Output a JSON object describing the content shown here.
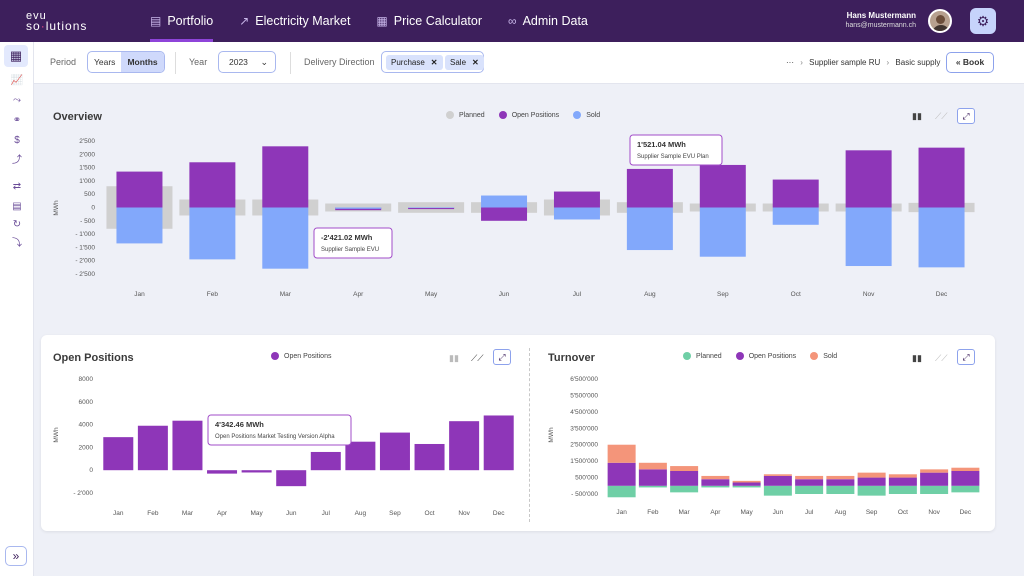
{
  "nav": {
    "logo_line1": "evu",
    "logo_line2a": "so",
    "logo_line2b": "lutions",
    "items": [
      {
        "label": "Portfolio",
        "icon": "portfolio-icon"
      },
      {
        "label": "Electricity Market",
        "icon": "trend-icon"
      },
      {
        "label": "Price Calculator",
        "icon": "calculator-icon"
      },
      {
        "label": "Admin Data",
        "icon": "glasses-icon"
      }
    ],
    "user_name": "Hans Mustermann",
    "user_email": "hans@mustermann.ch"
  },
  "filters": {
    "period_label": "Period",
    "period_options": [
      "Years",
      "Months"
    ],
    "period_selected": "Months",
    "year_label": "Year",
    "year_value": "2023",
    "direction_label": "Delivery Direction",
    "direction_chips": [
      "Purchase",
      "Sale"
    ],
    "breadcrumb": [
      "···",
      "Supplier sample RU",
      "Basic supply"
    ],
    "book_label": "Book"
  },
  "colors": {
    "planned": "#d0d0d0",
    "open": "#8e36b8",
    "sold": "#82a8fb",
    "turnover_planned": "#6fcfa6",
    "turnover_open": "#8e36b8",
    "turnover_sold": "#f4957a",
    "nav_bg": "#3d1f5c"
  },
  "overview": {
    "title": "Overview",
    "legend": [
      "Planned",
      "Open Positions",
      "Sold"
    ],
    "tooltip1_value": "1'521.04 MWh",
    "tooltip1_label": "Supplier Sample EVU Plan",
    "tooltip2_value": "-2'421.02 MWh",
    "tooltip2_label": "Supplier Sample EVU"
  },
  "open_positions": {
    "title": "Open Positions",
    "legend": [
      "Open Positions"
    ],
    "tooltip_value": "4'342.46 MWh",
    "tooltip_label": "Open Positions Market Testing Version Alpha"
  },
  "turnover": {
    "title": "Turnover",
    "legend": [
      "Planned",
      "Open Positions",
      "Sold"
    ]
  },
  "chart_data": [
    {
      "type": "bar",
      "categories": [
        "Jan",
        "Feb",
        "Mar",
        "Apr",
        "May",
        "Jun",
        "Jul",
        "Aug",
        "Sep",
        "Oct",
        "Nov",
        "Dec"
      ],
      "ylabel": "MWh",
      "ylim": [
        -2500,
        2500
      ],
      "yticks": [
        "2'500",
        "2'000",
        "1'500",
        "1'000",
        "500",
        "0",
        "- 500",
        "- 1'000",
        "- 1'500",
        "- 2'000",
        "- 2'500"
      ],
      "series": [
        {
          "name": "Planned",
          "values": [
            1600,
            600,
            600,
            300,
            400,
            400,
            600,
            400,
            300,
            300,
            300,
            350
          ]
        },
        {
          "name": "Open Positions",
          "values": [
            1350,
            1700,
            2300,
            -100,
            -60,
            -500,
            600,
            1450,
            1600,
            1050,
            2150,
            2250
          ]
        },
        {
          "name": "Sold",
          "values": [
            -1350,
            -1950,
            -2300,
            -50,
            -20,
            450,
            -450,
            -1600,
            -1850,
            -650,
            -2200,
            -2250
          ]
        }
      ]
    },
    {
      "type": "bar",
      "categories": [
        "Jan",
        "Feb",
        "Mar",
        "Apr",
        "May",
        "Jun",
        "Jul",
        "Aug",
        "Sep",
        "Oct",
        "Nov",
        "Dec"
      ],
      "ylabel": "MWh",
      "ylim": [
        -2000,
        8000
      ],
      "yticks": [
        "8000",
        "6000",
        "4000",
        "2000",
        "0",
        "- 2'000"
      ],
      "series": [
        {
          "name": "Open Positions",
          "values": [
            2900,
            3900,
            4342,
            -300,
            -200,
            -1400,
            1600,
            2500,
            3300,
            2300,
            4300,
            4800
          ]
        }
      ]
    },
    {
      "type": "bar",
      "categories": [
        "Jan",
        "Feb",
        "Mar",
        "Apr",
        "May",
        "Jun",
        "Jul",
        "Aug",
        "Sep",
        "Oct",
        "Nov",
        "Dec"
      ],
      "ylabel": "MWh",
      "ylim": [
        -500000,
        6500000
      ],
      "yticks": [
        "6'500'000",
        "5'500'000",
        "4'500'000",
        "3'500'000",
        "2'500'000",
        "1'500'000",
        "500'000",
        "- 500'000"
      ],
      "series": [
        {
          "name": "Planned",
          "values": [
            -700000,
            -100000,
            -400000,
            -100000,
            -100000,
            -600000,
            -500000,
            -500000,
            -600000,
            -500000,
            -500000,
            -400000
          ]
        },
        {
          "name": "Open Positions",
          "values": [
            1400000,
            1000000,
            900000,
            400000,
            200000,
            600000,
            400000,
            400000,
            500000,
            500000,
            800000,
            900000
          ]
        },
        {
          "name": "Sold",
          "values": [
            1100000,
            400000,
            300000,
            200000,
            100000,
            100000,
            200000,
            200000,
            300000,
            200000,
            200000,
            200000
          ]
        }
      ]
    }
  ]
}
